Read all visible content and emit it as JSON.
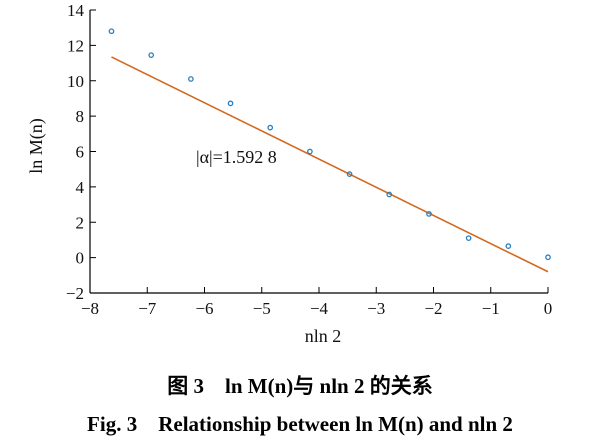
{
  "chart_data": {
    "type": "scatter",
    "xlabel": "nln 2",
    "ylabel": "ln M(n)",
    "xlim": [
      -8,
      0
    ],
    "ylim": [
      -2,
      14
    ],
    "xticks": [
      "−8",
      "−7",
      "−6",
      "−5",
      "−4",
      "−3",
      "−2",
      "−1",
      "0"
    ],
    "yticks": [
      "−2",
      "0",
      "2",
      "4",
      "6",
      "8",
      "10",
      "12",
      "14"
    ],
    "annotation": "|α|=1.592 8",
    "points": {
      "x": [
        -7.625,
        -6.931,
        -6.238,
        -5.545,
        -4.852,
        -4.159,
        -3.466,
        -2.773,
        -2.079,
        -1.386,
        -0.693,
        0.0
      ],
      "y": [
        12.8,
        11.45,
        10.1,
        8.72,
        7.35,
        6.0,
        4.72,
        3.57,
        2.47,
        1.1,
        0.65,
        0.02
      ]
    },
    "fit_line": {
      "slope": -1.5928,
      "intercept": -0.8,
      "x_range": [
        -7.625,
        0.0
      ]
    },
    "colors": {
      "points": "#2a7fc0",
      "fit_line": "#d2691e"
    }
  },
  "caption": {
    "cn": "图 3　ln M(n)与 nln 2 的关系",
    "en": "Fig. 3　Relationship between ln M(n) and nln 2"
  }
}
